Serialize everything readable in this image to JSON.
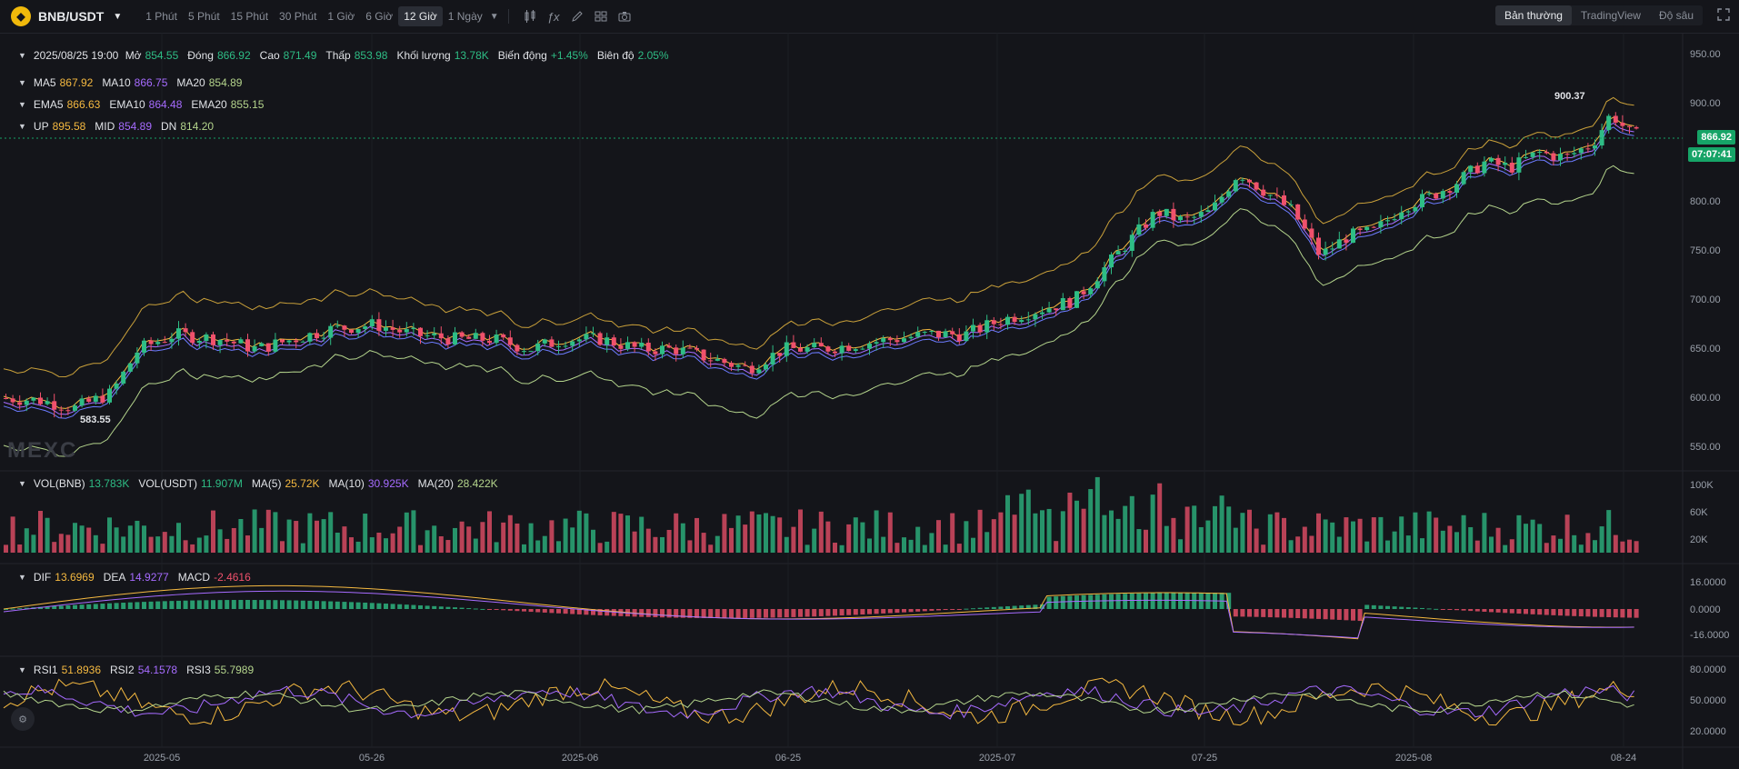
{
  "toolbar": {
    "symbol": "BNB/USDT",
    "intervals": [
      "1 Phút",
      "5 Phút",
      "15 Phút",
      "30 Phút",
      "1 Giờ",
      "6 Giờ",
      "12 Giờ",
      "1 Ngày"
    ],
    "active_interval": "12 Giờ",
    "views": [
      "Bản thường",
      "TradingView",
      "Độ sâu"
    ],
    "active_view": "Bản thường"
  },
  "ohlc": {
    "date": "2025/08/25 19:00",
    "open_label": "Mở",
    "open": "854.55",
    "close_label": "Đóng",
    "close": "866.92",
    "high_label": "Cao",
    "high": "871.49",
    "low_label": "Thấp",
    "low": "853.98",
    "vol_label": "Khối lượng",
    "vol": "13.78K",
    "change_label": "Biến động",
    "change": "+1.45%",
    "amp_label": "Biên độ",
    "amp": "2.05%"
  },
  "ma": {
    "ma5_label": "MA5",
    "ma5": "867.92",
    "ma10_label": "MA10",
    "ma10": "866.75",
    "ma20_label": "MA20",
    "ma20": "854.89"
  },
  "ema": {
    "ema5_label": "EMA5",
    "ema5": "866.63",
    "ema10_label": "EMA10",
    "ema10": "864.48",
    "ema20_label": "EMA20",
    "ema20": "855.15"
  },
  "boll": {
    "up_label": "UP",
    "up": "895.58",
    "mid_label": "MID",
    "mid": "854.89",
    "dn_label": "DN",
    "dn": "814.20"
  },
  "price_axis": [
    "950.00",
    "900.00",
    "850.00",
    "800.00",
    "750.00",
    "700.00",
    "650.00",
    "600.00",
    "550.00"
  ],
  "current_price": "866.92",
  "countdown": "07:07:41",
  "high_mark": "900.37",
  "low_mark": "583.55",
  "watermark": "MEXC",
  "vol": {
    "vol_bnb_label": "VOL(BNB)",
    "vol_bnb": "13.783K",
    "vol_usdt_label": "VOL(USDT)",
    "vol_usdt": "11.907M",
    "ma5_label": "MA(5)",
    "ma5": "25.72K",
    "ma10_label": "MA(10)",
    "ma10": "30.925K",
    "ma20_label": "MA(20)",
    "ma20": "28.422K"
  },
  "vol_axis": [
    "100K",
    "60K",
    "20K"
  ],
  "macd": {
    "dif_label": "DIF",
    "dif": "13.6969",
    "dea_label": "DEA",
    "dea": "14.9277",
    "macd_label": "MACD",
    "macd": "-2.4616"
  },
  "macd_axis": [
    "16.0000",
    "0.0000",
    "-16.0000"
  ],
  "rsi": {
    "rsi1_label": "RSI1",
    "rsi1": "51.8936",
    "rsi2_label": "RSI2",
    "rsi2": "54.1578",
    "rsi3_label": "RSI3",
    "rsi3": "55.7989"
  },
  "rsi_axis": [
    "80.0000",
    "50.0000",
    "20.0000"
  ],
  "time_axis": [
    "2025-05",
    "05-26",
    "2025-06",
    "06-25",
    "2025-07",
    "07-25",
    "2025-08",
    "08-24"
  ],
  "colors": {
    "up": "#2ebd85",
    "down": "#f0516c",
    "ma5": "#f5b940",
    "ma10": "#a66bff",
    "ma20": "#b4d48c",
    "boll": "#e0b23c"
  }
}
